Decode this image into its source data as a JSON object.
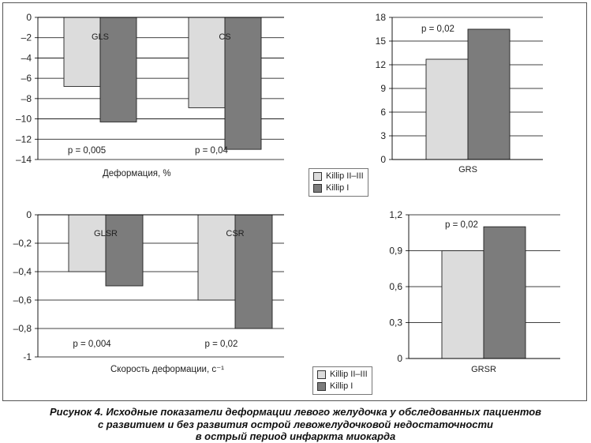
{
  "colors": {
    "killip_2_3": "#dcdcdc",
    "killip_1": "#7c7c7c",
    "grid": "#000000"
  },
  "legend": [
    {
      "label": "Killip II–III",
      "color": "#dcdcdc"
    },
    {
      "label": "Killip I",
      "color": "#7c7c7c"
    }
  ],
  "caption": {
    "line1": "Рисунок 4. Исходные показатели деформации левого желудочка у обследованных пациентов",
    "line2": "с развитием и без развития острой левожелудочковой недостаточности",
    "line3": "в острый период инфаркта миокарда"
  },
  "chart_data": [
    {
      "type": "bar",
      "xlabel": "Деформация, %",
      "categories": [
        "GLS",
        "CS"
      ],
      "series": [
        {
          "name": "Killip II–III",
          "values": [
            -6.8,
            -8.9
          ]
        },
        {
          "name": "Killip I",
          "values": [
            -10.3,
            -13.0
          ]
        }
      ],
      "pvalues": [
        "p = 0,005",
        "p = 0,04"
      ],
      "ylim": [
        -14,
        0
      ],
      "yticks": [
        0,
        -2,
        -4,
        -6,
        -8,
        -10,
        -12,
        -14
      ],
      "ytick_labels": [
        "0",
        "–2",
        "–4",
        "–6",
        "–8",
        "–10",
        "–12",
        "–14"
      ],
      "grid": true
    },
    {
      "type": "bar",
      "xlabel": "",
      "categories": [
        "GRS"
      ],
      "series": [
        {
          "name": "Killip II–III",
          "values": [
            12.7
          ]
        },
        {
          "name": "Killip I",
          "values": [
            16.5
          ]
        }
      ],
      "pvalues": [
        "p = 0,02"
      ],
      "ylim": [
        0,
        18
      ],
      "yticks": [
        0,
        3,
        6,
        9,
        12,
        15,
        18
      ],
      "ytick_labels": [
        "0",
        "3",
        "6",
        "9",
        "12",
        "15",
        "18"
      ],
      "grid": true
    },
    {
      "type": "bar",
      "xlabel": "Скорость деформации, с⁻¹",
      "categories": [
        "GLSR",
        "CSR"
      ],
      "series": [
        {
          "name": "Killip II–III",
          "values": [
            -0.4,
            -0.6
          ]
        },
        {
          "name": "Killip I",
          "values": [
            -0.5,
            -0.8
          ]
        }
      ],
      "pvalues": [
        "p = 0,004",
        "p = 0,02"
      ],
      "ylim": [
        -1,
        0
      ],
      "yticks": [
        0,
        -0.2,
        -0.4,
        -0.6,
        -0.8,
        -1
      ],
      "ytick_labels": [
        "0",
        "–0,2",
        "–0,4",
        "–0,6",
        "–0,8",
        "-1"
      ],
      "grid": true
    },
    {
      "type": "bar",
      "xlabel": "",
      "categories": [
        "GRSR"
      ],
      "series": [
        {
          "name": "Killip II–III",
          "values": [
            0.9
          ]
        },
        {
          "name": "Killip I",
          "values": [
            1.1
          ]
        }
      ],
      "pvalues": [
        "p = 0,02"
      ],
      "ylim": [
        0,
        1.2
      ],
      "yticks": [
        0,
        0.3,
        0.6,
        0.9,
        1.2
      ],
      "ytick_labels": [
        "0",
        "0,3",
        "0,6",
        "0,9",
        "1,2"
      ],
      "grid": true
    }
  ]
}
